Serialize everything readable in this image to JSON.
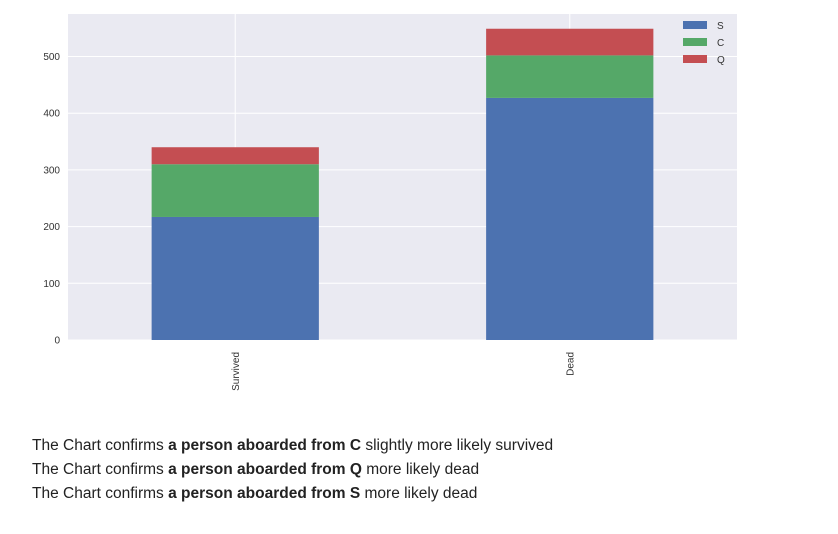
{
  "chart_data": {
    "type": "bar",
    "stacked": true,
    "categories": [
      "Survived",
      "Dead"
    ],
    "series": [
      {
        "name": "S",
        "values": [
          217,
          427
        ],
        "color": "#4c72b0"
      },
      {
        "name": "C",
        "values": [
          93,
          75
        ],
        "color": "#55a868"
      },
      {
        "name": "Q",
        "values": [
          30,
          47
        ],
        "color": "#c44e52"
      }
    ],
    "title": "",
    "xlabel": "",
    "ylabel": "",
    "ylim": [
      0,
      575
    ],
    "yticks": [
      0,
      100,
      200,
      300,
      400,
      500
    ],
    "grid": true,
    "legend_position": "top-right",
    "background_color": "#eaeaf2",
    "grid_color": "#ffffff"
  },
  "notes": [
    {
      "prefix": "The Chart confirms ",
      "bold": "a person aboarded from C",
      "suffix": " slightly more likely survived"
    },
    {
      "prefix": "The Chart confirms ",
      "bold": "a person aboarded from Q",
      "suffix": " more likely dead"
    },
    {
      "prefix": "The Chart confirms ",
      "bold": "a person aboarded from S",
      "suffix": " more likely dead"
    }
  ]
}
